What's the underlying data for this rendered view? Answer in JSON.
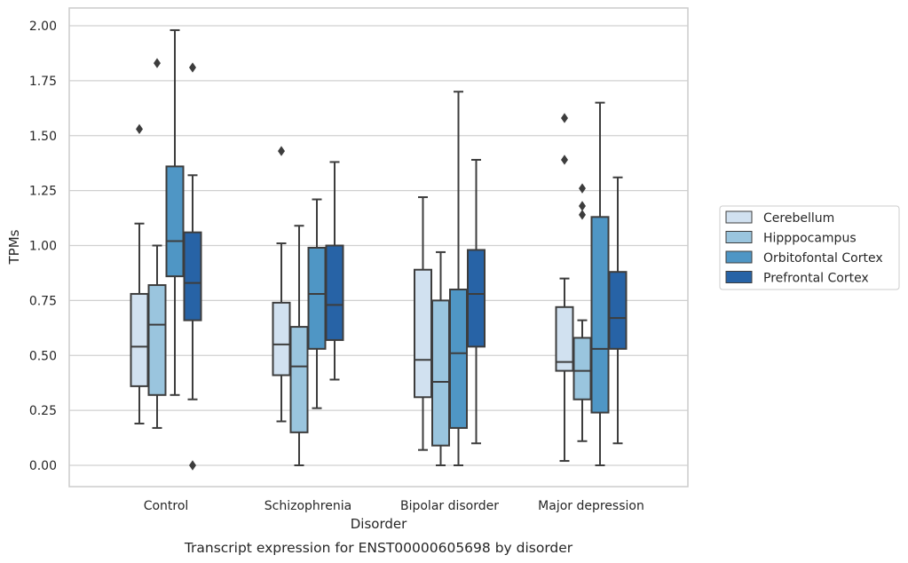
{
  "chart_data": {
    "type": "box",
    "title": "",
    "caption": "Transcript expression for ENST00000605698 by disorder",
    "xlabel": "Disorder",
    "ylabel": "TPMs",
    "ylim": [
      -0.1,
      2.08
    ],
    "yticks": [
      "0.00",
      "0.25",
      "0.50",
      "0.75",
      "1.00",
      "1.25",
      "1.50",
      "1.75",
      "2.00"
    ],
    "grid": true,
    "legend_position": "right",
    "categories": [
      "Control",
      "Schizophrenia",
      "Bipolar disorder",
      "Major depression"
    ],
    "series": [
      {
        "name": "Cerebellum",
        "color": "#d1e1f0",
        "boxes": [
          {
            "whislo": 0.19,
            "q1": 0.36,
            "med": 0.54,
            "q3": 0.78,
            "whishi": 1.1,
            "fliers": [
              1.53
            ]
          },
          {
            "whislo": 0.2,
            "q1": 0.41,
            "med": 0.55,
            "q3": 0.74,
            "whishi": 1.01,
            "fliers": [
              1.43
            ]
          },
          {
            "whislo": 0.07,
            "q1": 0.31,
            "med": 0.48,
            "q3": 0.89,
            "whishi": 1.22,
            "fliers": []
          },
          {
            "whislo": 0.02,
            "q1": 0.43,
            "med": 0.47,
            "q3": 0.72,
            "whishi": 0.85,
            "fliers": [
              1.39,
              1.58
            ]
          }
        ]
      },
      {
        "name": "Hipppocampus",
        "color": "#9ac5de",
        "boxes": [
          {
            "whislo": 0.17,
            "q1": 0.32,
            "med": 0.64,
            "q3": 0.82,
            "whishi": 1.0,
            "fliers": [
              1.83
            ]
          },
          {
            "whislo": 0.0,
            "q1": 0.15,
            "med": 0.45,
            "q3": 0.63,
            "whishi": 1.09,
            "fliers": []
          },
          {
            "whislo": 0.0,
            "q1": 0.09,
            "med": 0.38,
            "q3": 0.75,
            "whishi": 0.97,
            "fliers": []
          },
          {
            "whislo": 0.11,
            "q1": 0.3,
            "med": 0.43,
            "q3": 0.58,
            "whishi": 0.66,
            "fliers": [
              1.14,
              1.18,
              1.26
            ]
          }
        ]
      },
      {
        "name": "Orbitofontal Cortex",
        "color": "#4f96c5",
        "boxes": [
          {
            "whislo": 0.32,
            "q1": 0.86,
            "med": 1.02,
            "q3": 1.36,
            "whishi": 1.98,
            "fliers": []
          },
          {
            "whislo": 0.26,
            "q1": 0.53,
            "med": 0.78,
            "q3": 0.99,
            "whishi": 1.21,
            "fliers": []
          },
          {
            "whislo": 0.0,
            "q1": 0.17,
            "med": 0.51,
            "q3": 0.8,
            "whishi": 1.7,
            "fliers": []
          },
          {
            "whislo": 0.0,
            "q1": 0.24,
            "med": 0.53,
            "q3": 1.13,
            "whishi": 1.65,
            "fliers": []
          }
        ]
      },
      {
        "name": "Prefrontal Cortex",
        "color": "#2763a6",
        "boxes": [
          {
            "whislo": 0.3,
            "q1": 0.66,
            "med": 0.83,
            "q3": 1.06,
            "whishi": 1.32,
            "fliers": [
              0.0,
              1.81
            ]
          },
          {
            "whislo": 0.39,
            "q1": 0.57,
            "med": 0.73,
            "q3": 1.0,
            "whishi": 1.38,
            "fliers": []
          },
          {
            "whislo": 0.1,
            "q1": 0.54,
            "med": 0.78,
            "q3": 0.98,
            "whishi": 1.39,
            "fliers": []
          },
          {
            "whislo": 0.1,
            "q1": 0.53,
            "med": 0.67,
            "q3": 0.88,
            "whishi": 1.31,
            "fliers": []
          }
        ]
      }
    ]
  }
}
